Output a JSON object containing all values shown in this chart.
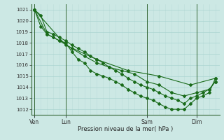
{
  "xlabel": "Pression niveau de la mer( hPa )",
  "ylim": [
    1011.5,
    1021.5
  ],
  "yticks": [
    1012,
    1013,
    1014,
    1015,
    1016,
    1017,
    1018,
    1019,
    1020,
    1021
  ],
  "bg_color": "#cce8e4",
  "grid_color_major": "#aad4d0",
  "grid_color_minor": "#bbddda",
  "line_color": "#1a6b1a",
  "day_labels": [
    "Ven",
    "Lun",
    "Sam",
    "Dim"
  ],
  "day_positions": [
    0,
    30,
    108,
    156
  ],
  "xlim": [
    -3,
    178
  ],
  "series1": {
    "x": [
      0,
      4,
      9,
      12,
      30,
      30,
      42,
      54
    ],
    "y": [
      1021,
      1020.5,
      1019,
      1018.5,
      1018.2,
      1018.2,
      1017.8,
      1017.5
    ]
  },
  "series2_long": {
    "x": [
      0,
      6,
      12,
      18,
      24,
      30,
      36,
      42,
      48,
      54,
      60,
      66,
      72,
      78,
      84,
      90,
      96,
      102,
      108,
      114,
      120,
      126,
      132,
      138,
      144,
      150,
      156,
      162,
      168,
      174
    ],
    "y": [
      1021,
      1020.5,
      1019.0,
      1018.8,
      1018.5,
      1018.2,
      1017.8,
      1017.5,
      1017.2,
      1016.8,
      1016.5,
      1016.2,
      1015.8,
      1015.5,
      1015.2,
      1014.8,
      1014.5,
      1014.2,
      1014.0,
      1013.8,
      1013.5,
      1013.2,
      1013.0,
      1012.8,
      1012.5,
      1013.0,
      1013.2,
      1013.5,
      1013.8,
      1014.5
    ]
  },
  "series3": {
    "x": [
      0,
      6,
      12,
      18,
      24,
      30,
      36,
      42,
      48,
      54,
      60,
      66,
      72,
      78,
      84,
      90,
      96,
      102,
      108,
      114,
      120,
      126,
      132,
      138,
      144,
      150,
      156,
      162,
      168,
      174
    ],
    "y": [
      1021,
      1019.5,
      1018.8,
      1018.5,
      1018.2,
      1018.0,
      1017.2,
      1016.5,
      1016.2,
      1015.5,
      1015.2,
      1015.0,
      1014.8,
      1014.5,
      1014.2,
      1013.8,
      1013.5,
      1013.2,
      1013.0,
      1012.8,
      1012.5,
      1012.2,
      1012.0,
      1012.0,
      1012.0,
      1012.5,
      1013.0,
      1013.2,
      1013.5,
      1014.8
    ]
  },
  "series4": {
    "x": [
      0,
      12,
      24,
      36,
      48,
      60,
      72,
      84,
      96,
      108,
      120,
      132,
      144,
      156,
      168,
      174
    ],
    "y": [
      1021,
      1018.8,
      1018.2,
      1017.5,
      1016.8,
      1016.2,
      1015.8,
      1015.5,
      1015.2,
      1014.5,
      1014.2,
      1013.5,
      1013.2,
      1013.5,
      1013.8,
      1014.5
    ]
  },
  "series5": {
    "x": [
      0,
      30,
      60,
      90,
      120,
      150,
      174
    ],
    "y": [
      1021,
      1017.8,
      1016.5,
      1015.5,
      1015.0,
      1014.2,
      1014.8
    ]
  }
}
